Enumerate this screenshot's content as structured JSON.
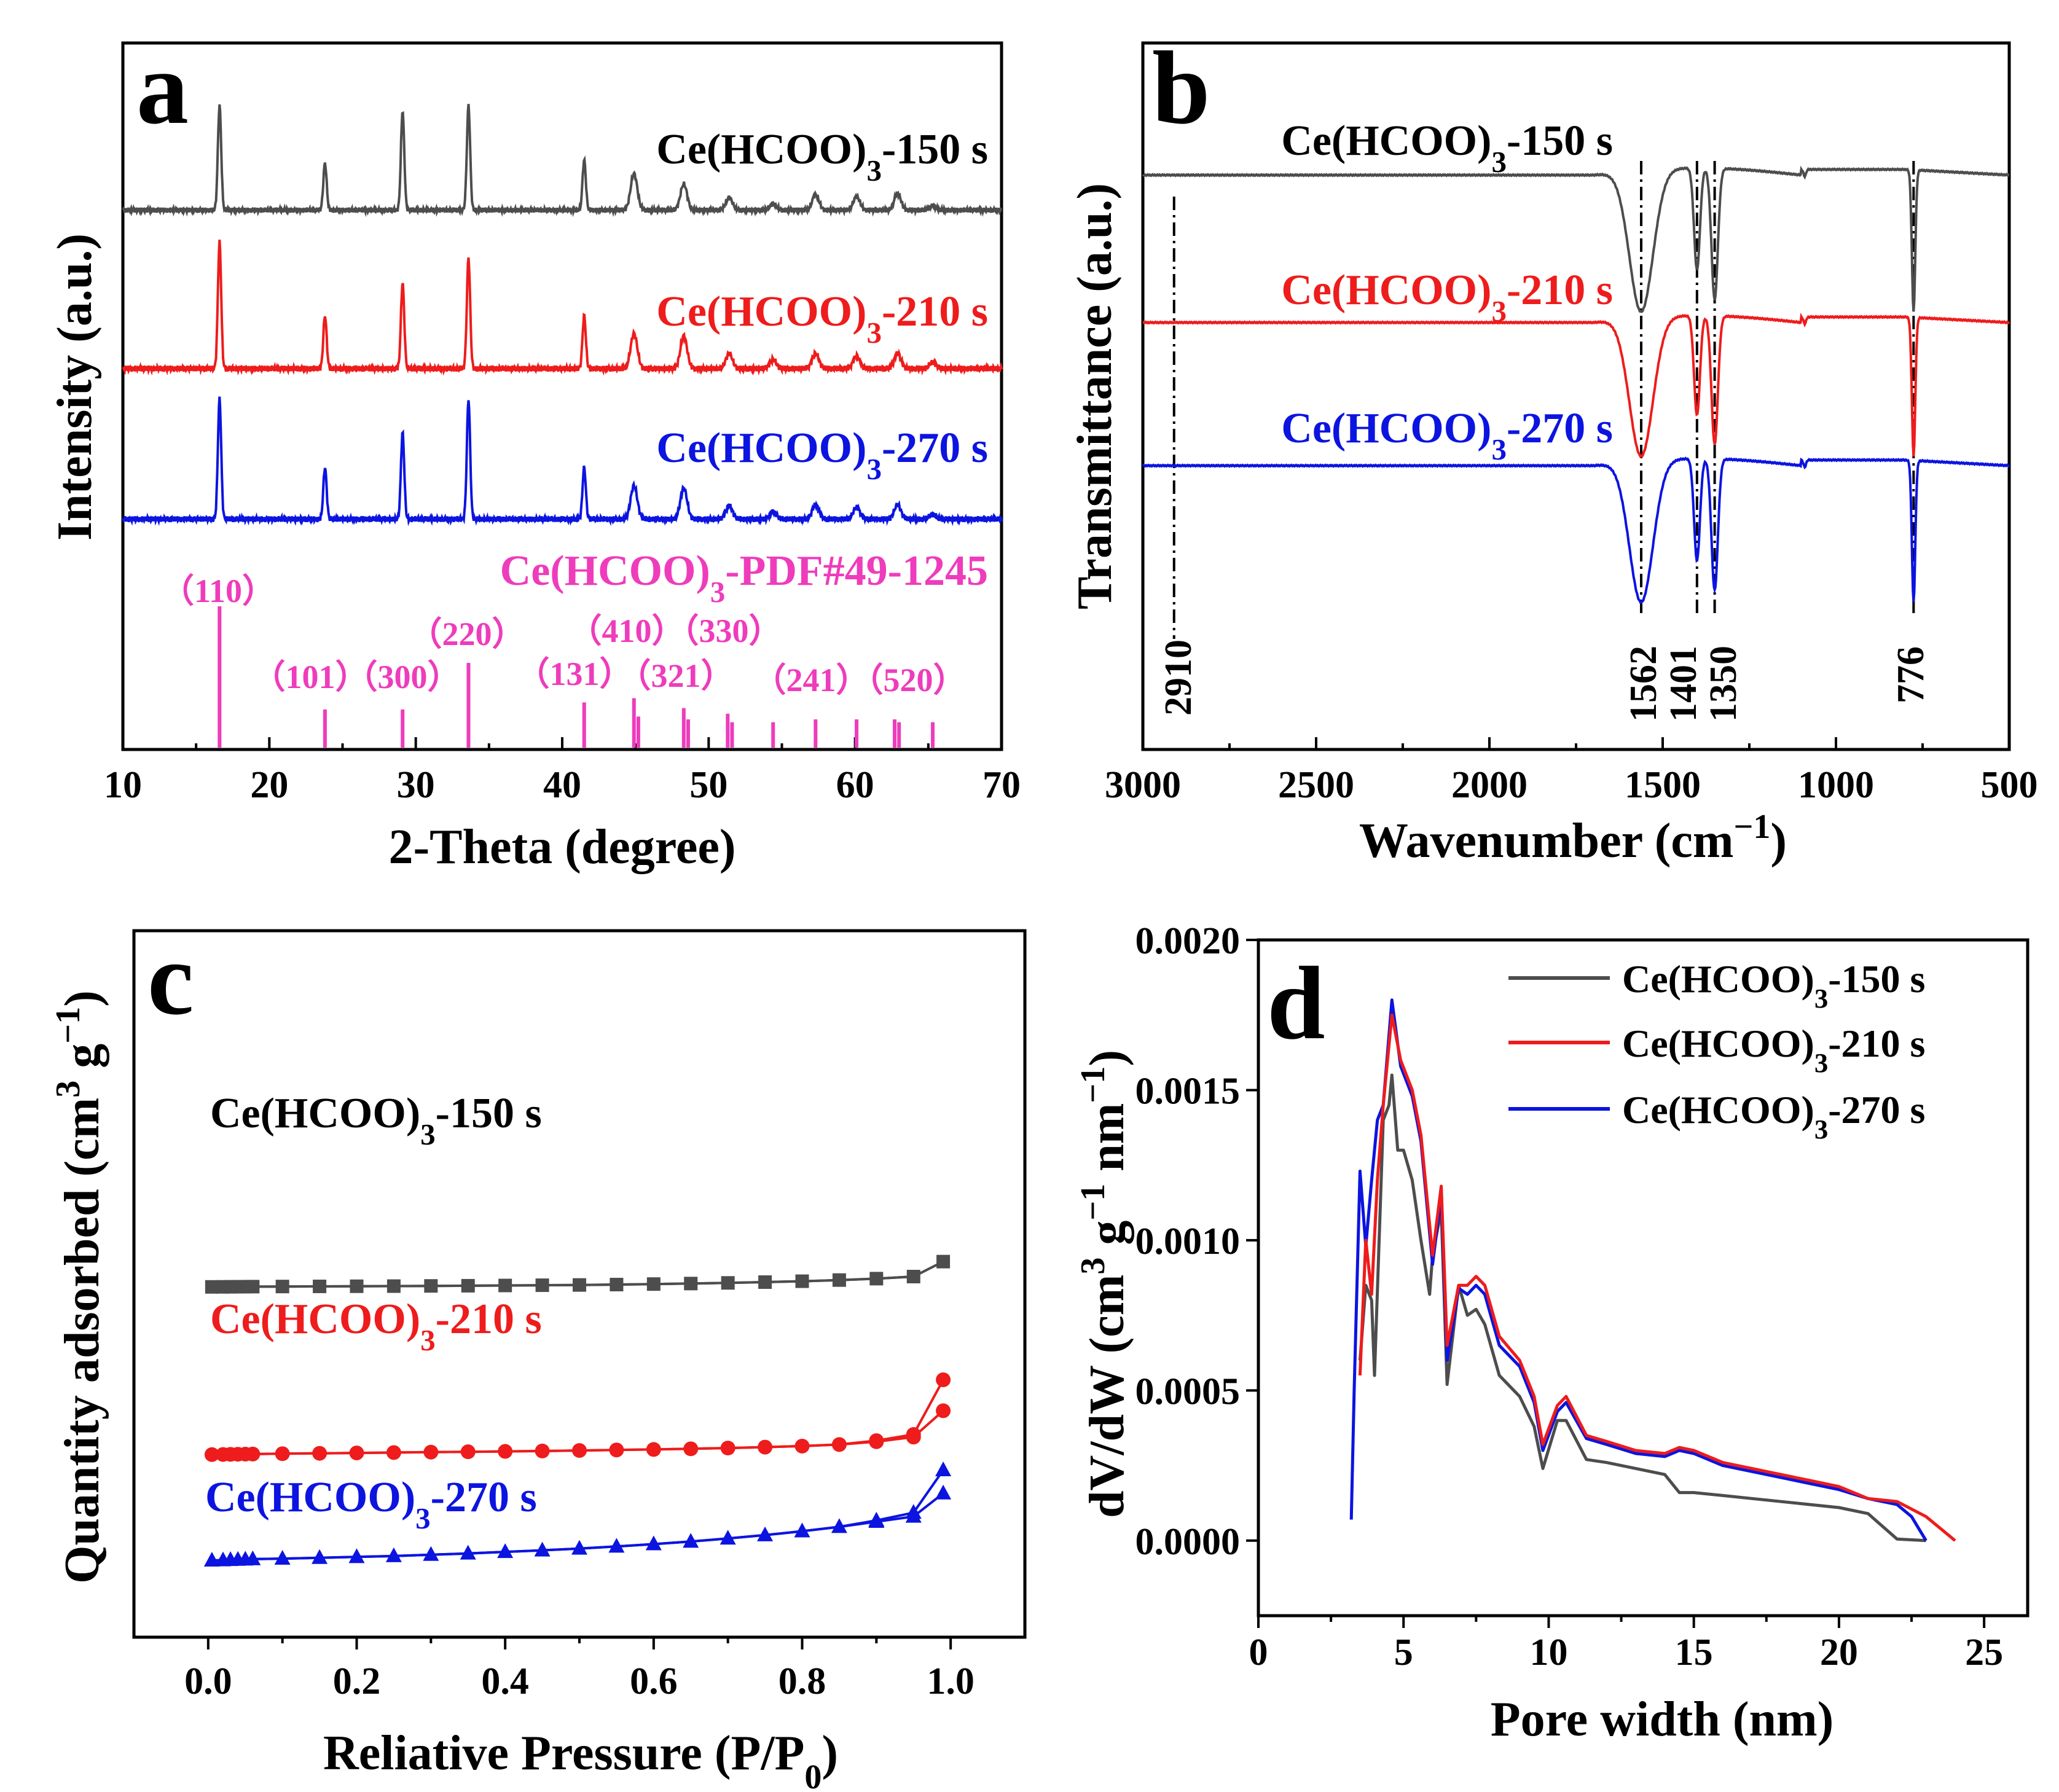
{
  "colors": {
    "s150": "#4d4d4d",
    "s210": "#ee1c1c",
    "s270": "#0c14e0",
    "pdf": "#ee3cbc",
    "refline": "#000000"
  },
  "panels": {
    "a": {
      "letter": "a",
      "xlabel": "2-Theta (degree)",
      "ylabel": "Intensity (a.u.)",
      "xticks": [
        "10",
        "20",
        "30",
        "40",
        "50",
        "60",
        "70"
      ],
      "series_labels": [
        "Ce(HCOO)3-150 s",
        "Ce(HCOO)3-210 s",
        "Ce(HCOO)3-270 s"
      ],
      "pdf_label": "Ce(HCOO)3-PDF#49-1245",
      "hkl_labels": [
        "（110）",
        "（101）",
        "（300）",
        "（220）",
        "（131）",
        "（410）",
        "（330）",
        "（321）",
        "（241）",
        "（520）"
      ]
    },
    "b": {
      "letter": "b",
      "xlabel": "Wavenumber (cm−1)",
      "ylabel": "Transmittance (a.u.)",
      "xticks": [
        "3000",
        "2500",
        "2000",
        "1500",
        "1000",
        "500"
      ],
      "series_labels": [
        "Ce(HCOO)3-150 s",
        "Ce(HCOO)3-210 s",
        "Ce(HCOO)3-270 s"
      ],
      "band_labels": [
        "2910",
        "1562",
        "1401",
        "1350",
        "776"
      ]
    },
    "c": {
      "letter": "c",
      "xlabel": "Reliative Pressure (P/P0)",
      "ylabel": "Quantity adsorbed (cm3 g−1)",
      "xticks": [
        "0.0",
        "0.2",
        "0.4",
        "0.6",
        "0.8",
        "1.0"
      ],
      "series_labels": [
        "Ce(HCOO)3-150 s",
        "Ce(HCOO)3-210 s",
        "Ce(HCOO)3-270 s"
      ]
    },
    "d": {
      "letter": "d",
      "xlabel": "Pore width (nm)",
      "ylabel": "dV/dW (cm3 g−1 nm−1)",
      "xticks": [
        "0",
        "5",
        "10",
        "15",
        "20",
        "25"
      ],
      "yticks": [
        "0.0000",
        "0.0005",
        "0.0010",
        "0.0015",
        "0.0020"
      ],
      "legend": [
        "Ce(HCOO)3-150 s",
        "Ce(HCOO)3-210 s",
        "Ce(HCOO)3-270 s"
      ]
    }
  },
  "chart_data": [
    {
      "panel": "a",
      "type": "line",
      "title": "",
      "xlabel": "2-Theta (degree)",
      "ylabel": "Intensity (a.u.)",
      "xlim": [
        10,
        70
      ],
      "peaks": [
        16.6,
        23.8,
        29.1,
        33.6,
        41.5,
        44.9,
        48.3,
        51.4,
        54.4,
        57.3,
        60.1,
        62.9,
        65.3
      ],
      "series": [
        {
          "name": "Ce(HCOO)3-150 s",
          "offset": 2,
          "intensities": [
            1.0,
            0.45,
            0.95,
            1.0,
            0.48,
            0.35,
            0.25,
            0.12,
            0.06,
            0.15,
            0.13,
            0.16,
            0.04
          ]
        },
        {
          "name": "Ce(HCOO)3-210 s",
          "offset": 1,
          "intensities": [
            1.0,
            0.42,
            0.68,
            0.88,
            0.42,
            0.28,
            0.26,
            0.12,
            0.07,
            0.12,
            0.1,
            0.12,
            0.05
          ]
        },
        {
          "name": "Ce(HCOO)3-270 s",
          "offset": 0,
          "intensities": [
            1.0,
            0.43,
            0.72,
            1.0,
            0.43,
            0.28,
            0.26,
            0.11,
            0.06,
            0.12,
            0.1,
            0.12,
            0.04
          ]
        }
      ],
      "reference": {
        "name": "Ce(HCOO)3-PDF#49-1245",
        "positions": [
          16.6,
          23.8,
          29.1,
          33.6,
          41.5,
          44.9,
          45.2,
          48.3,
          48.6,
          51.3,
          51.6,
          54.4,
          57.3,
          60.1,
          62.7,
          63.0,
          65.3
        ],
        "heights": [
          1.0,
          0.27,
          0.27,
          0.6,
          0.32,
          0.35,
          0.22,
          0.28,
          0.2,
          0.24,
          0.18,
          0.18,
          0.2,
          0.2,
          0.2,
          0.18,
          0.18
        ]
      }
    },
    {
      "panel": "b",
      "type": "line",
      "title": "",
      "xlabel": "Wavenumber (cm−1)",
      "ylabel": "Transmittance (a.u.)",
      "xlim": [
        3000,
        500
      ],
      "bands": [
        {
          "center": 1562,
          "width": 48,
          "depth": 1.0
        },
        {
          "center": 1401,
          "width": 12,
          "depth": 0.72
        },
        {
          "center": 1350,
          "width": 13,
          "depth": 0.93
        },
        {
          "center": 776,
          "width": 7,
          "depth": 1.0
        },
        {
          "center": 1090,
          "width": 5,
          "depth": 0.05
        }
      ],
      "reference_lines": [
        2910,
        1562,
        1401,
        1350,
        776
      ],
      "series": [
        {
          "name": "Ce(HCOO)3-150 s",
          "offset": 2
        },
        {
          "name": "Ce(HCOO)3-210 s",
          "offset": 1
        },
        {
          "name": "Ce(HCOO)3-270 s",
          "offset": 0
        }
      ]
    },
    {
      "panel": "c",
      "type": "line",
      "title": "",
      "xlabel": "Reliative Pressure (P/P0)",
      "ylabel": "Quantity adsorbed (cm3 g−1)",
      "xlim": [
        -0.1,
        1.1
      ],
      "x": [
        0.005,
        0.02,
        0.03,
        0.04,
        0.05,
        0.06,
        0.1,
        0.15,
        0.2,
        0.25,
        0.3,
        0.35,
        0.4,
        0.45,
        0.5,
        0.55,
        0.6,
        0.65,
        0.7,
        0.75,
        0.8,
        0.85,
        0.9,
        0.95,
        0.99
      ],
      "series": [
        {
          "name": "Ce(HCOO)3-150 s",
          "marker": "square",
          "offset": 1060,
          "adsorption": [
            0,
            0.2,
            0.4,
            0.6,
            0.8,
            1.0,
            1.5,
            2,
            2.5,
            3,
            3.8,
            4.5,
            5.5,
            6.5,
            7.5,
            9,
            11,
            13,
            15.5,
            18.5,
            22,
            26.5,
            32,
            40,
            98
          ],
          "desorption": [
            0,
            0.2,
            0.4,
            0.6,
            0.8,
            1.0,
            1.5,
            2,
            2.5,
            3,
            3.8,
            4.5,
            5.5,
            6.5,
            7.5,
            9,
            11,
            13,
            15.5,
            18.5,
            22,
            26.5,
            32,
            40,
            98
          ]
        },
        {
          "name": "Ce(HCOO)3-210 s",
          "marker": "circle",
          "offset": 410,
          "adsorption": [
            0,
            0.5,
            1,
            1.4,
            1.8,
            2.2,
            3.5,
            5,
            6.5,
            8,
            9.5,
            11,
            12.5,
            14,
            16,
            18,
            20,
            22.5,
            25.5,
            29,
            33,
            39,
            50,
            68,
            170
          ],
          "desorption": [
            0,
            0.5,
            1,
            1.4,
            1.8,
            2.2,
            3.5,
            5,
            6.5,
            8,
            9.5,
            11,
            12.5,
            14,
            16,
            18,
            20,
            22.5,
            25.5,
            29,
            33,
            39,
            54,
            78,
            290
          ]
        },
        {
          "name": "Ce(HCOO)3-270 s",
          "marker": "triangle",
          "offset": 0,
          "adsorption": [
            0,
            1,
            2,
            3,
            4,
            5,
            7,
            10,
            13.5,
            17,
            22,
            27,
            33,
            39,
            46,
            54,
            63,
            73,
            85,
            98,
            113,
            130,
            150,
            170,
            260
          ],
          "desorption": [
            0,
            1,
            2,
            3,
            4,
            5,
            7,
            10,
            13.5,
            17,
            22,
            27,
            33,
            39,
            46,
            54,
            63,
            73,
            85,
            98,
            113,
            130,
            155,
            185,
            350
          ]
        }
      ]
    },
    {
      "panel": "d",
      "type": "line",
      "title": "",
      "xlabel": "Pore width (nm)",
      "ylabel": "dV/dW (cm3 g−1 nm−1)",
      "xlim": [
        0,
        26.5
      ],
      "ylim": [
        -0.00025,
        0.002
      ],
      "series": [
        {
          "name": "Ce(HCOO)3-150 s",
          "x": [
            3.5,
            3.7,
            3.9,
            4.0,
            4.3,
            4.5,
            4.6,
            4.8,
            5.0,
            5.3,
            5.6,
            5.9,
            6.0,
            6.3,
            6.5,
            6.9,
            7.2,
            7.5,
            7.8,
            8.3,
            9.0,
            9.5,
            9.8,
            10.3,
            10.6,
            11.3,
            12,
            13,
            14,
            14.5,
            15,
            16,
            17,
            18,
            19,
            20,
            21,
            22,
            23
          ],
          "y": [
            0.0006,
            0.00085,
            0.0008,
            0.00055,
            0.0014,
            0.00145,
            0.00155,
            0.0013,
            0.0013,
            0.0012,
            0.001,
            0.00082,
            0.00095,
            0.0011,
            0.00052,
            0.00085,
            0.00075,
            0.00077,
            0.00072,
            0.00055,
            0.00048,
            0.00038,
            0.00024,
            0.0004,
            0.0004,
            0.00027,
            0.00026,
            0.00024,
            0.00022,
            0.00016,
            0.00016,
            0.00015,
            0.00014,
            0.00013,
            0.00012,
            0.00011,
            9e-05,
            5e-06,
            0.0
          ]
        },
        {
          "name": "Ce(HCOO)3-210 s",
          "x": [
            3.5,
            3.7,
            3.9,
            4.1,
            4.3,
            4.6,
            4.9,
            5.3,
            5.6,
            6.0,
            6.3,
            6.5,
            6.9,
            7.2,
            7.5,
            7.8,
            8.3,
            9.0,
            9.5,
            9.8,
            10.3,
            10.6,
            11.3,
            12,
            13,
            14,
            14.5,
            15,
            16,
            17,
            18,
            19,
            20,
            21,
            22,
            23,
            24
          ],
          "y": [
            0.00055,
            0.001,
            0.00082,
            0.0012,
            0.00145,
            0.00175,
            0.0016,
            0.0015,
            0.00135,
            0.00095,
            0.00118,
            0.00065,
            0.00085,
            0.00085,
            0.00088,
            0.00085,
            0.00068,
            0.0006,
            0.00048,
            0.00032,
            0.00045,
            0.00048,
            0.00035,
            0.00033,
            0.0003,
            0.00029,
            0.00031,
            0.0003,
            0.00026,
            0.00024,
            0.00022,
            0.0002,
            0.00018,
            0.00014,
            0.00013,
            8e-05,
            0.0
          ]
        },
        {
          "name": "Ce(HCOO)3-270 s",
          "x": [
            3.2,
            3.3,
            3.5,
            3.7,
            3.9,
            4.1,
            4.3,
            4.6,
            4.9,
            5.3,
            5.6,
            6.0,
            6.3,
            6.5,
            6.9,
            7.2,
            7.5,
            7.8,
            8.3,
            9.0,
            9.5,
            9.8,
            10.3,
            10.6,
            11.3,
            12,
            13,
            14,
            14.5,
            15,
            16,
            17,
            18,
            19,
            20,
            21,
            22,
            22.5,
            23
          ],
          "y": [
            7e-05,
            0.0005,
            0.00123,
            0.00098,
            0.0012,
            0.0014,
            0.00145,
            0.0018,
            0.00158,
            0.00148,
            0.00133,
            0.00092,
            0.00115,
            0.0006,
            0.00084,
            0.00082,
            0.00085,
            0.00082,
            0.00065,
            0.00058,
            0.00046,
            0.0003,
            0.00043,
            0.00046,
            0.00034,
            0.00032,
            0.00029,
            0.00028,
            0.0003,
            0.00029,
            0.00025,
            0.00023,
            0.00021,
            0.00019,
            0.00017,
            0.00014,
            0.00012,
            8e-05,
            0.0
          ]
        }
      ]
    }
  ]
}
